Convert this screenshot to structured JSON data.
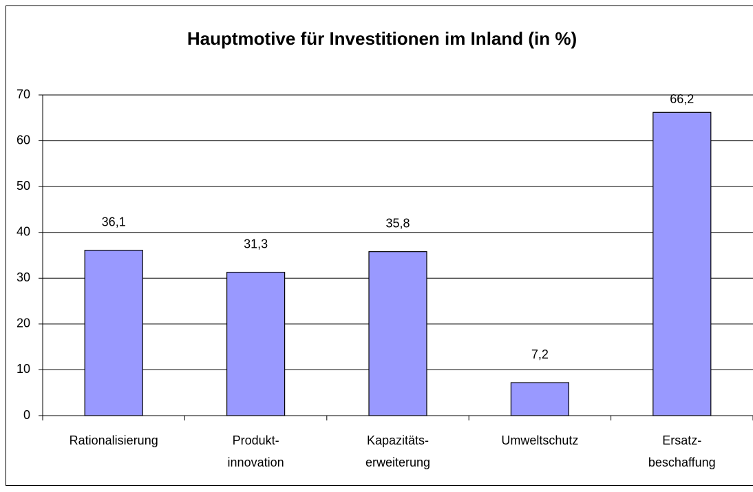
{
  "chart_data": {
    "type": "bar",
    "title": "Hauptmotive für Investitionen im Inland (in %)",
    "categories": [
      "Rationalisierung",
      "Produkt-\ninnovation",
      "Kapazitäts-\nerweiterung",
      "Umweltschutz",
      "Ersatz-\nbeschaffung"
    ],
    "values": [
      36.1,
      31.3,
      35.8,
      7.2,
      66.2
    ],
    "value_labels": [
      "36,1",
      "31,3",
      "35,8",
      "7,2",
      "66,2"
    ],
    "color": "#9999ff",
    "ylim": [
      0,
      70
    ],
    "yticks": [
      0,
      10,
      20,
      30,
      40,
      50,
      60,
      70
    ],
    "grid": true
  }
}
